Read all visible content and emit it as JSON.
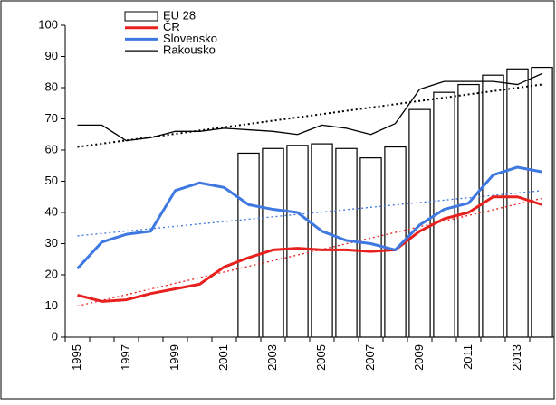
{
  "chart_data": {
    "type": "bar-line",
    "categories": [
      "1995",
      null,
      "1997",
      null,
      "1999",
      null,
      "2001",
      null,
      "2003",
      null,
      "2005",
      null,
      "2007",
      null,
      "2009",
      null,
      "2011",
      null,
      "2013",
      null
    ],
    "ylim": [
      0,
      100
    ],
    "yticks": [
      0,
      10,
      20,
      30,
      40,
      50,
      60,
      70,
      80,
      90,
      100
    ],
    "grid": false,
    "legend": "top",
    "series": [
      {
        "name": "EU 28",
        "kind": "bar",
        "color": "#000000",
        "values": [
          null,
          null,
          null,
          null,
          null,
          null,
          null,
          59,
          60.5,
          61.5,
          62,
          60.5,
          57.5,
          61,
          73,
          78.5,
          81,
          84,
          86,
          86.5
        ]
      },
      {
        "name": "ČR",
        "kind": "line",
        "color": "#e8201e",
        "values": [
          13.5,
          11.5,
          12,
          14,
          15.5,
          17,
          22.5,
          25.5,
          28,
          28.5,
          28,
          28,
          27.5,
          28,
          34,
          38,
          40,
          45,
          45,
          42.5
        ]
      },
      {
        "name": "Slovensko",
        "kind": "line",
        "color": "#3f78e0",
        "values": [
          22,
          30.5,
          33,
          34,
          47,
          49.5,
          48,
          42.5,
          41,
          40,
          34,
          31,
          30,
          28,
          36,
          41,
          43,
          52,
          54.5,
          53
        ]
      },
      {
        "name": "Rakousko",
        "kind": "line",
        "color": "#000000",
        "values": [
          68,
          68,
          63,
          64,
          66,
          66,
          67,
          66.5,
          66,
          65,
          68,
          67,
          65,
          68.5,
          79.5,
          82,
          82,
          82,
          81,
          84.5
        ]
      }
    ],
    "trendlines": [
      {
        "color": "#000000",
        "values": [
          61,
          81
        ]
      },
      {
        "color": "#3f78e0",
        "values": [
          32.5,
          47
        ]
      },
      {
        "color": "#e8201e",
        "values": [
          10,
          44.5
        ]
      }
    ]
  }
}
